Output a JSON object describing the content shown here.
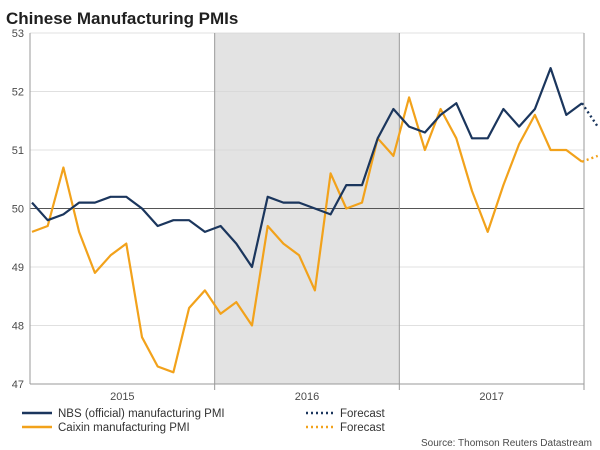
{
  "chart_data": {
    "type": "line",
    "title": "Chinese Manufacturing PMIs",
    "source": "Source: Thomson Reuters Datastream",
    "ylim": [
      47,
      53
    ],
    "y_ticks": [
      "47",
      "48",
      "49",
      "50",
      "51",
      "52",
      "53"
    ],
    "reference_line": 50,
    "year_labels": [
      "2015",
      "2016",
      "2017"
    ],
    "shaded_period": "2016",
    "series": [
      {
        "name": "NBS (official) manufacturing PMI",
        "color": "#1b365d",
        "style": "solid",
        "values": [
          50.1,
          49.8,
          49.9,
          50.1,
          50.1,
          50.2,
          50.2,
          50.0,
          49.7,
          49.8,
          49.8,
          49.6,
          49.7,
          49.4,
          49.0,
          50.2,
          50.1,
          50.1,
          50.0,
          49.9,
          50.4,
          50.4,
          51.2,
          51.7,
          51.4,
          51.3,
          51.6,
          51.8,
          51.2,
          51.2,
          51.7,
          51.4,
          51.7,
          52.4,
          51.6,
          51.8
        ]
      },
      {
        "name": "Caixin manufacturing PMI",
        "color": "#f2a21b",
        "style": "solid",
        "values": [
          49.6,
          49.7,
          50.7,
          49.6,
          48.9,
          49.2,
          49.4,
          47.8,
          47.3,
          47.2,
          48.3,
          48.6,
          48.2,
          48.4,
          48.0,
          49.7,
          49.4,
          49.2,
          48.6,
          50.6,
          50.0,
          50.1,
          51.2,
          50.9,
          51.9,
          51.0,
          51.7,
          51.2,
          50.3,
          49.6,
          50.4,
          51.1,
          51.6,
          51.0,
          51.0,
          50.8
        ]
      }
    ],
    "forecasts": [
      {
        "name": "Forecast",
        "series": "NBS (official) manufacturing PMI",
        "color": "#1b365d",
        "style": "dotted",
        "values": [
          51.8,
          51.4
        ]
      },
      {
        "name": "Forecast",
        "series": "Caixin manufacturing PMI",
        "color": "#f2a21b",
        "style": "dotted",
        "values": [
          50.8,
          50.9
        ]
      }
    ]
  }
}
